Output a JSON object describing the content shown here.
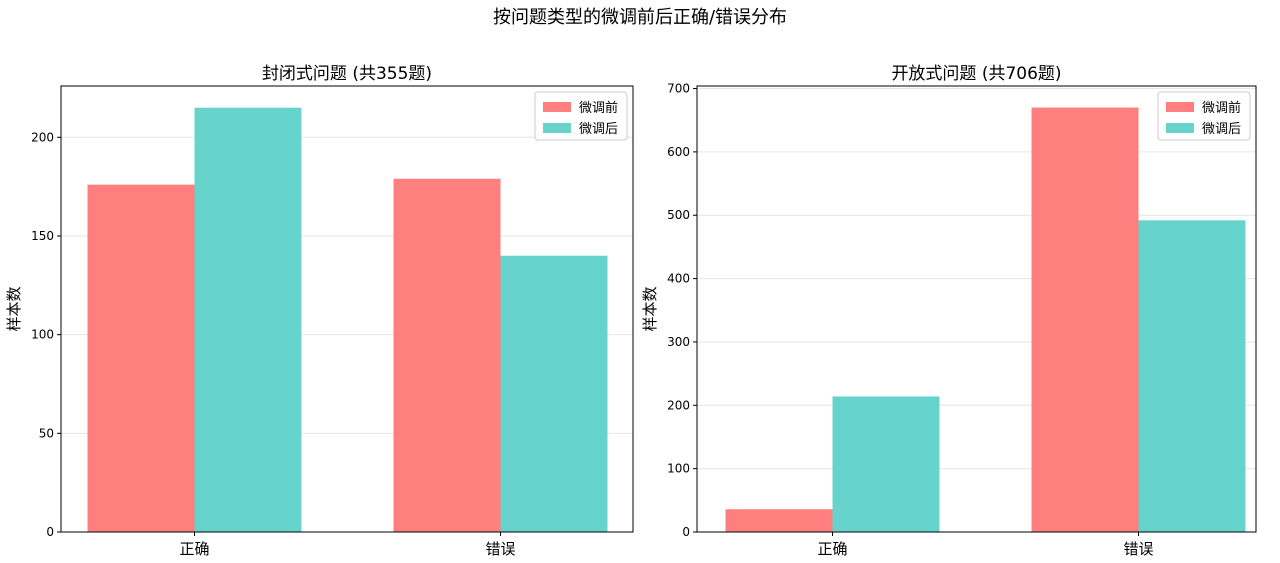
{
  "figure_title": "按问题类型的微调前后正确/错误分布",
  "chart_data": [
    {
      "type": "bar",
      "title": "封闭式问题 (共355题)",
      "xlabel": "",
      "ylabel": "样本数",
      "categories": [
        "正确",
        "错误"
      ],
      "series": [
        {
          "name": "微调前",
          "values": [
            176,
            179
          ],
          "color": "#ff7f7f"
        },
        {
          "name": "微调后",
          "values": [
            215,
            140
          ],
          "color": "#66d4cc"
        }
      ],
      "ylim": [
        0,
        226
      ],
      "yticks": [
        0,
        50,
        100,
        150,
        200
      ],
      "grid": "y",
      "legend": "top-right"
    },
    {
      "type": "bar",
      "title": "开放式问题 (共706题)",
      "xlabel": "",
      "ylabel": "样本数",
      "categories": [
        "正确",
        "错误"
      ],
      "series": [
        {
          "name": "微调前",
          "values": [
            36,
            670
          ],
          "color": "#ff7f7f"
        },
        {
          "name": "微调后",
          "values": [
            214,
            492
          ],
          "color": "#66d4cc"
        }
      ],
      "ylim": [
        0,
        704
      ],
      "yticks": [
        0,
        100,
        200,
        300,
        400,
        500,
        600,
        700
      ],
      "grid": "y",
      "legend": "top-right"
    }
  ]
}
